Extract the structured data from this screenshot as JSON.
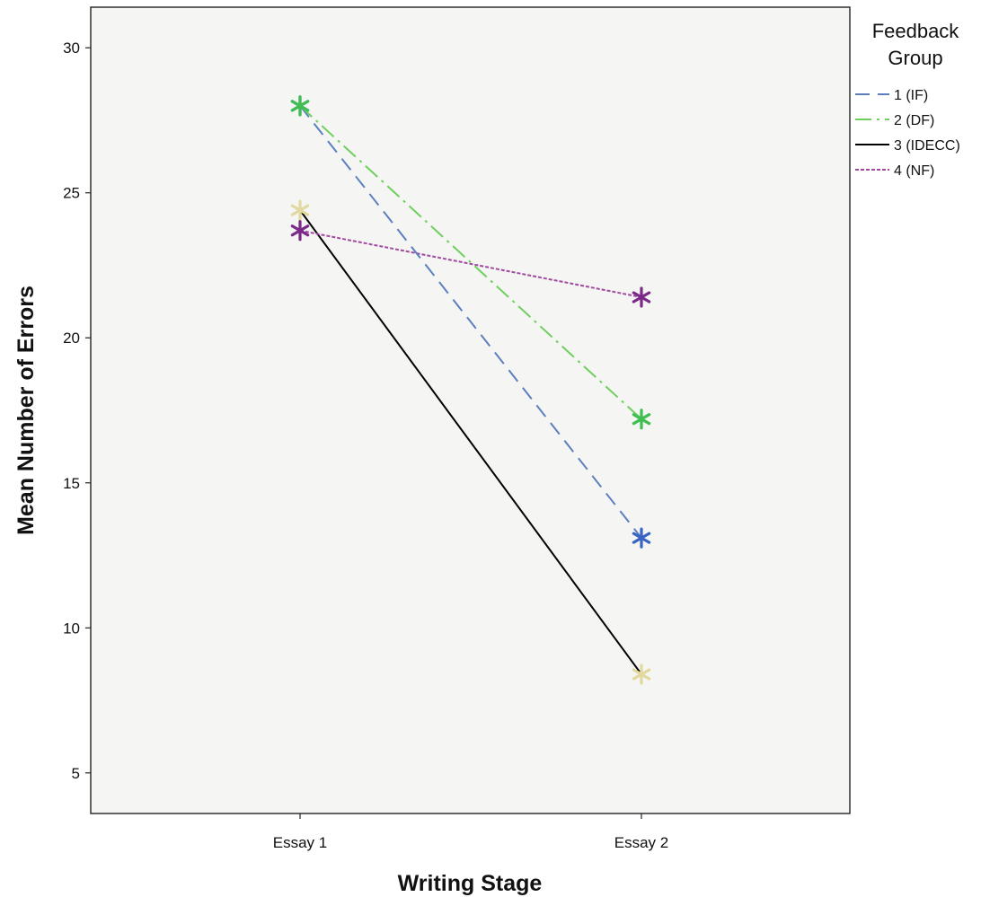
{
  "chart_data": {
    "type": "line",
    "title": "",
    "xlabel": "Writing Stage",
    "ylabel": "Mean Number of Errors",
    "categories": [
      "Essay 1",
      "Essay 2"
    ],
    "ylim": [
      3.6,
      31.4
    ],
    "yticks": [
      5,
      10,
      15,
      20,
      25,
      30
    ],
    "grid": false,
    "legend": {
      "title": "Feedback Group",
      "placement": "right"
    },
    "marker": "star",
    "series": [
      {
        "name": "1 (IF)",
        "values": [
          28.0,
          13.1
        ],
        "color": "#5b7fbf",
        "marker_color": "#3a64c2",
        "dash": "16,9"
      },
      {
        "name": "2 (DF)",
        "values": [
          28.0,
          17.2
        ],
        "color": "#6fcf5e",
        "marker_color": "#3fbf4f",
        "dash": "18,6,3,6"
      },
      {
        "name": "3 (IDECC)",
        "values": [
          24.4,
          8.4
        ],
        "color": "#000000",
        "marker_color": "#e2d9a0",
        "dash": ""
      },
      {
        "name": "4 (NF)",
        "values": [
          23.7,
          21.4
        ],
        "color": "#a24aa0",
        "marker_color": "#7b2a88",
        "dash": "4,2"
      }
    ]
  }
}
